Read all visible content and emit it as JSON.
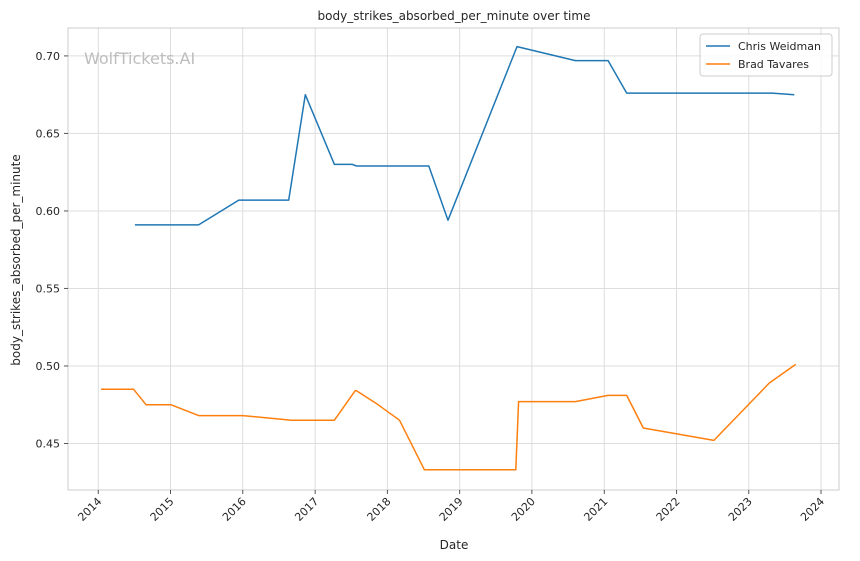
{
  "chart_data": {
    "type": "line",
    "title": "body_strikes_absorbed_per_minute over time",
    "xlabel": "Date",
    "ylabel": "body_strikes_absorbed_per_minute",
    "xlim": [
      "2013-08-01",
      "2024-04-01"
    ],
    "ylim": [
      0.42,
      0.718
    ],
    "x_ticks": [
      "2014",
      "2015",
      "2016",
      "2017",
      "2018",
      "2019",
      "2020",
      "2021",
      "2022",
      "2023",
      "2024"
    ],
    "y_ticks": [
      0.45,
      0.5,
      0.55,
      0.6,
      0.65,
      0.7
    ],
    "y_tick_labels": [
      "0.45",
      "0.50",
      "0.55",
      "0.60",
      "0.65",
      "0.70"
    ],
    "grid": true,
    "legend_position": "top-right",
    "watermark": "WolfTickets.AI",
    "series": [
      {
        "name": "Chris Weidman",
        "color": "#1f77b4",
        "points": [
          [
            "2014-07-05",
            0.591
          ],
          [
            "2015-05-23",
            0.591
          ],
          [
            "2015-12-12",
            0.607
          ],
          [
            "2016-08-20",
            0.607
          ],
          [
            "2016-11-12",
            0.675
          ],
          [
            "2017-04-08",
            0.63
          ],
          [
            "2017-07-08",
            0.63
          ],
          [
            "2017-07-29",
            0.629
          ],
          [
            "2018-07-29",
            0.629
          ],
          [
            "2018-11-03",
            0.594
          ],
          [
            "2019-10-18",
            0.706
          ],
          [
            "2020-08-08",
            0.697
          ],
          [
            "2021-01-20",
            0.697
          ],
          [
            "2021-04-24",
            0.676
          ],
          [
            "2023-04-29",
            0.676
          ],
          [
            "2023-08-19",
            0.675
          ]
        ]
      },
      {
        "name": "Brad Tavares",
        "color": "#ff7f0e",
        "points": [
          [
            "2014-01-15",
            0.485
          ],
          [
            "2014-06-28",
            0.485
          ],
          [
            "2014-08-30",
            0.475
          ],
          [
            "2015-01-03",
            0.475
          ],
          [
            "2015-05-23",
            0.468
          ],
          [
            "2016-01-02",
            0.468
          ],
          [
            "2016-09-03",
            0.465
          ],
          [
            "2017-04-08",
            0.465
          ],
          [
            "2017-07-22",
            0.484
          ],
          [
            "2017-07-29",
            0.484
          ],
          [
            "2017-11-04",
            0.476
          ],
          [
            "2018-03-03",
            0.465
          ],
          [
            "2018-07-07",
            0.433
          ],
          [
            "2019-10-12",
            0.433
          ],
          [
            "2019-10-26",
            0.477
          ],
          [
            "2020-08-08",
            0.477
          ],
          [
            "2021-01-20",
            0.481
          ],
          [
            "2021-04-24",
            0.481
          ],
          [
            "2021-07-17",
            0.46
          ],
          [
            "2022-07-09",
            0.452
          ],
          [
            "2023-04-15",
            0.489
          ],
          [
            "2023-08-26",
            0.501
          ]
        ]
      }
    ]
  }
}
